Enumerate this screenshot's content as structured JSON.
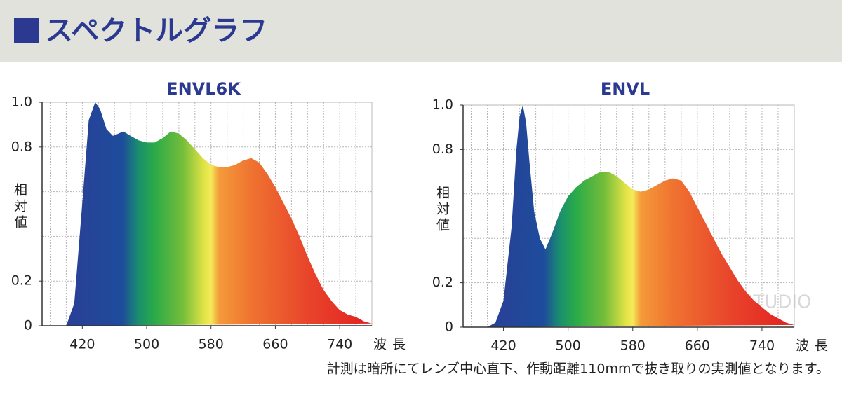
{
  "header": {
    "title": "スペクトルグラフ"
  },
  "note": "計測は暗所にてレンズ中心直下、作動距離110mmで抜き取りの実測値となります。",
  "watermark": "LOUPE STUDIO",
  "chart_data": [
    {
      "type": "area",
      "title": "ENVL6K",
      "x_label": "波長",
      "y_label": "相対値",
      "x": [
        400,
        410,
        420,
        428,
        436,
        442,
        450,
        458,
        465,
        471,
        480,
        490,
        500,
        510,
        520,
        530,
        540,
        550,
        560,
        570,
        580,
        590,
        600,
        610,
        620,
        630,
        640,
        650,
        660,
        670,
        680,
        690,
        700,
        710,
        720,
        730,
        740,
        750,
        760,
        770,
        780
      ],
      "values": [
        0,
        0.1,
        0.55,
        0.92,
        1.0,
        0.97,
        0.88,
        0.85,
        0.86,
        0.87,
        0.85,
        0.83,
        0.82,
        0.82,
        0.84,
        0.87,
        0.86,
        0.83,
        0.79,
        0.75,
        0.72,
        0.71,
        0.71,
        0.72,
        0.74,
        0.75,
        0.73,
        0.68,
        0.62,
        0.55,
        0.48,
        0.4,
        0.31,
        0.23,
        0.16,
        0.11,
        0.07,
        0.05,
        0.04,
        0.02,
        0.01
      ],
      "xlim": [
        370,
        780
      ],
      "xticks": [
        420,
        500,
        580,
        660,
        740
      ],
      "xgrid": [
        380,
        400,
        420,
        440,
        460,
        480,
        500,
        520,
        540,
        560,
        580,
        600,
        620,
        640,
        660,
        680,
        700,
        720,
        740,
        760
      ],
      "ylim": [
        0,
        1
      ],
      "yticks": [
        0,
        0.2,
        0.8,
        {
          "value": 1,
          "label": "1.0"
        }
      ],
      "ygrid": [
        0.2,
        0.4,
        0.6,
        0.8,
        1
      ],
      "color_stops": [
        {
          "nm": 400,
          "color": "#2a3f96"
        },
        {
          "nm": 470,
          "color": "#1e4c9c"
        },
        {
          "nm": 490,
          "color": "#1a8f6e"
        },
        {
          "nm": 510,
          "color": "#2aab48"
        },
        {
          "nm": 545,
          "color": "#76bd3a"
        },
        {
          "nm": 572,
          "color": "#e2e446"
        },
        {
          "nm": 580,
          "color": "#f4ea58"
        },
        {
          "nm": 590,
          "color": "#f49a3a"
        },
        {
          "nm": 630,
          "color": "#ef7330"
        },
        {
          "nm": 700,
          "color": "#e8452b"
        },
        {
          "nm": 770,
          "color": "#e42422"
        }
      ]
    },
    {
      "type": "area",
      "title": "ENVL",
      "x_label": "波長",
      "y_label": "相対値",
      "x": [
        400,
        410,
        420,
        430,
        436,
        440,
        444,
        448,
        452,
        458,
        465,
        472,
        480,
        490,
        500,
        510,
        520,
        530,
        540,
        550,
        560,
        570,
        580,
        590,
        600,
        610,
        620,
        630,
        640,
        650,
        660,
        670,
        680,
        690,
        700,
        710,
        720,
        730,
        740,
        750,
        760,
        770,
        780
      ],
      "values": [
        0,
        0.02,
        0.12,
        0.45,
        0.8,
        0.95,
        1.0,
        0.92,
        0.75,
        0.52,
        0.4,
        0.35,
        0.42,
        0.52,
        0.59,
        0.63,
        0.66,
        0.68,
        0.7,
        0.7,
        0.68,
        0.65,
        0.62,
        0.61,
        0.62,
        0.64,
        0.66,
        0.67,
        0.66,
        0.61,
        0.54,
        0.47,
        0.4,
        0.33,
        0.27,
        0.21,
        0.16,
        0.12,
        0.09,
        0.06,
        0.04,
        0.02,
        0.01
      ],
      "xlim": [
        370,
        780
      ],
      "xticks": [
        420,
        500,
        580,
        660,
        740
      ],
      "xgrid": [
        380,
        400,
        420,
        440,
        460,
        480,
        500,
        520,
        540,
        560,
        580,
        600,
        620,
        640,
        660,
        680,
        700,
        720,
        740,
        760
      ],
      "ylim": [
        0,
        1
      ],
      "yticks": [
        0,
        0.2,
        0.8,
        {
          "value": 1,
          "label": "1.0"
        }
      ],
      "ygrid": [
        0.2,
        0.4,
        0.6,
        0.8,
        1
      ],
      "color_stops": [
        {
          "nm": 400,
          "color": "#2a3f96"
        },
        {
          "nm": 470,
          "color": "#1e4c9c"
        },
        {
          "nm": 490,
          "color": "#1a8f6e"
        },
        {
          "nm": 510,
          "color": "#2aab48"
        },
        {
          "nm": 545,
          "color": "#76bd3a"
        },
        {
          "nm": 572,
          "color": "#e2e446"
        },
        {
          "nm": 580,
          "color": "#f4ea58"
        },
        {
          "nm": 590,
          "color": "#f49a3a"
        },
        {
          "nm": 630,
          "color": "#ef7330"
        },
        {
          "nm": 700,
          "color": "#e8452b"
        },
        {
          "nm": 770,
          "color": "#e42422"
        }
      ]
    }
  ]
}
